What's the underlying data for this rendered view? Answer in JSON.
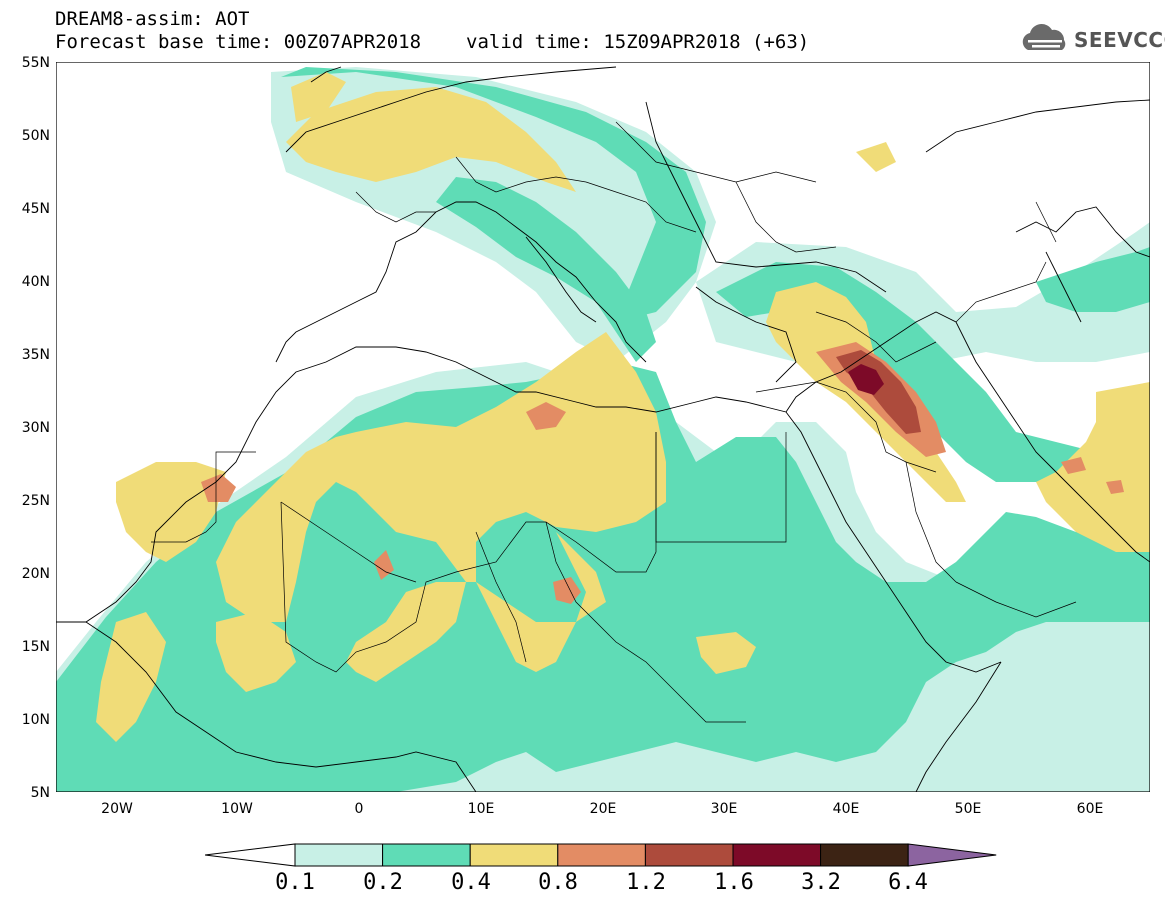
{
  "header": {
    "line1": "DREAM8-assim: AOT",
    "base_time": "Forecast base time: 00Z07APR2018",
    "valid_time": "valid time: 15Z09APR2018 (+63)"
  },
  "logo": {
    "text": "SEEVCCC",
    "icon": "cloud-icon"
  },
  "map": {
    "variable": "AOT",
    "lat_labels": [
      "55N",
      "50N",
      "45N",
      "40N",
      "35N",
      "30N",
      "25N",
      "20N",
      "15N",
      "10N",
      "5N"
    ],
    "lon_labels": [
      "20W",
      "10W",
      "0",
      "10E",
      "20E",
      "30E",
      "40E",
      "50E",
      "60E"
    ],
    "extent": {
      "lon_min": -25,
      "lon_max": 65,
      "lat_min": 5,
      "lat_max": 55
    }
  },
  "colorbar": {
    "labels": [
      "0.1",
      "0.2",
      "0.4",
      "0.8",
      "1.2",
      "1.6",
      "3.2",
      "6.4"
    ],
    "colors": [
      "#ffffff",
      "#c8f0e6",
      "#5fdcb6",
      "#f0dc78",
      "#e38c64",
      "#ad4b3c",
      "#7d0a28",
      "#3c2314",
      "#8c64a0"
    ]
  }
}
